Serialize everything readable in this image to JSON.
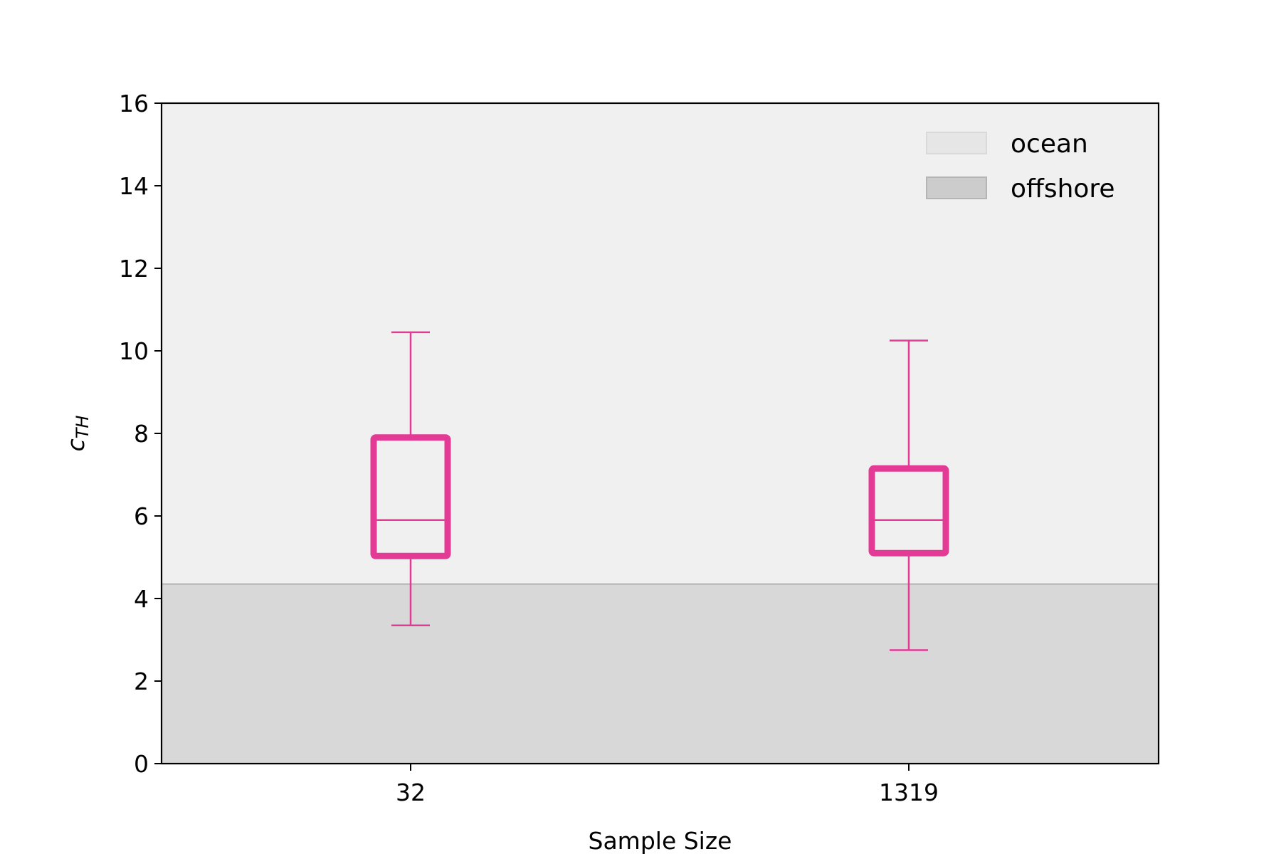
{
  "chart_data": {
    "type": "box",
    "xlabel": "Sample Size",
    "ylabel_main": "c",
    "ylabel_sub": "TH",
    "ylim": [
      0,
      16
    ],
    "yticks": [
      0,
      2,
      4,
      6,
      8,
      10,
      12,
      14,
      16
    ],
    "categories": [
      "32",
      "1319"
    ],
    "boxes": [
      {
        "category": "32",
        "whisker_low": 3.35,
        "q1": 5.03,
        "median": 5.9,
        "q3": 7.9,
        "whisker_high": 10.45
      },
      {
        "category": "1319",
        "whisker_low": 2.75,
        "q1": 5.1,
        "median": 5.9,
        "q3": 7.15,
        "whisker_high": 10.25
      }
    ],
    "regions": [
      {
        "name": "ocean",
        "from": 4.35,
        "to": 16,
        "color": "#f0f0f0"
      },
      {
        "name": "offshore",
        "from": 0,
        "to": 4.35,
        "color": "#d8d8d8"
      }
    ],
    "legend": {
      "placement": "top-right",
      "items": [
        {
          "label": "ocean",
          "color": "#e6e6e6"
        },
        {
          "label": "offshore",
          "color": "#cccccc"
        }
      ]
    },
    "box_color": "#e33a96",
    "grid": false
  }
}
